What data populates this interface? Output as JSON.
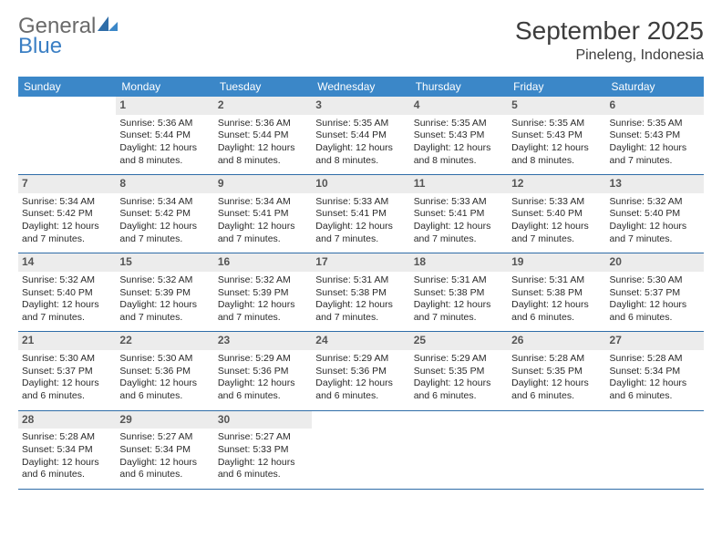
{
  "logo": {
    "line1": "General",
    "line2": "Blue"
  },
  "title": "September 2025",
  "location": "Pineleng, Indonesia",
  "colors": {
    "header_bg": "#3b87c8",
    "header_text": "#ffffff",
    "daynum_bg": "#ececec",
    "daynum_text": "#555555",
    "row_border": "#2f6da8",
    "logo_gray": "#6a6a6a",
    "logo_blue": "#3b7fc4",
    "title_color": "#3d3d3d"
  },
  "weekdays": [
    "Sunday",
    "Monday",
    "Tuesday",
    "Wednesday",
    "Thursday",
    "Friday",
    "Saturday"
  ],
  "weeks": [
    [
      null,
      {
        "n": "1",
        "sr": "5:36 AM",
        "ss": "5:44 PM",
        "dl": "12 hours and 8 minutes."
      },
      {
        "n": "2",
        "sr": "5:36 AM",
        "ss": "5:44 PM",
        "dl": "12 hours and 8 minutes."
      },
      {
        "n": "3",
        "sr": "5:35 AM",
        "ss": "5:44 PM",
        "dl": "12 hours and 8 minutes."
      },
      {
        "n": "4",
        "sr": "5:35 AM",
        "ss": "5:43 PM",
        "dl": "12 hours and 8 minutes."
      },
      {
        "n": "5",
        "sr": "5:35 AM",
        "ss": "5:43 PM",
        "dl": "12 hours and 8 minutes."
      },
      {
        "n": "6",
        "sr": "5:35 AM",
        "ss": "5:43 PM",
        "dl": "12 hours and 7 minutes."
      }
    ],
    [
      {
        "n": "7",
        "sr": "5:34 AM",
        "ss": "5:42 PM",
        "dl": "12 hours and 7 minutes."
      },
      {
        "n": "8",
        "sr": "5:34 AM",
        "ss": "5:42 PM",
        "dl": "12 hours and 7 minutes."
      },
      {
        "n": "9",
        "sr": "5:34 AM",
        "ss": "5:41 PM",
        "dl": "12 hours and 7 minutes."
      },
      {
        "n": "10",
        "sr": "5:33 AM",
        "ss": "5:41 PM",
        "dl": "12 hours and 7 minutes."
      },
      {
        "n": "11",
        "sr": "5:33 AM",
        "ss": "5:41 PM",
        "dl": "12 hours and 7 minutes."
      },
      {
        "n": "12",
        "sr": "5:33 AM",
        "ss": "5:40 PM",
        "dl": "12 hours and 7 minutes."
      },
      {
        "n": "13",
        "sr": "5:32 AM",
        "ss": "5:40 PM",
        "dl": "12 hours and 7 minutes."
      }
    ],
    [
      {
        "n": "14",
        "sr": "5:32 AM",
        "ss": "5:40 PM",
        "dl": "12 hours and 7 minutes."
      },
      {
        "n": "15",
        "sr": "5:32 AM",
        "ss": "5:39 PM",
        "dl": "12 hours and 7 minutes."
      },
      {
        "n": "16",
        "sr": "5:32 AM",
        "ss": "5:39 PM",
        "dl": "12 hours and 7 minutes."
      },
      {
        "n": "17",
        "sr": "5:31 AM",
        "ss": "5:38 PM",
        "dl": "12 hours and 7 minutes."
      },
      {
        "n": "18",
        "sr": "5:31 AM",
        "ss": "5:38 PM",
        "dl": "12 hours and 7 minutes."
      },
      {
        "n": "19",
        "sr": "5:31 AM",
        "ss": "5:38 PM",
        "dl": "12 hours and 6 minutes."
      },
      {
        "n": "20",
        "sr": "5:30 AM",
        "ss": "5:37 PM",
        "dl": "12 hours and 6 minutes."
      }
    ],
    [
      {
        "n": "21",
        "sr": "5:30 AM",
        "ss": "5:37 PM",
        "dl": "12 hours and 6 minutes."
      },
      {
        "n": "22",
        "sr": "5:30 AM",
        "ss": "5:36 PM",
        "dl": "12 hours and 6 minutes."
      },
      {
        "n": "23",
        "sr": "5:29 AM",
        "ss": "5:36 PM",
        "dl": "12 hours and 6 minutes."
      },
      {
        "n": "24",
        "sr": "5:29 AM",
        "ss": "5:36 PM",
        "dl": "12 hours and 6 minutes."
      },
      {
        "n": "25",
        "sr": "5:29 AM",
        "ss": "5:35 PM",
        "dl": "12 hours and 6 minutes."
      },
      {
        "n": "26",
        "sr": "5:28 AM",
        "ss": "5:35 PM",
        "dl": "12 hours and 6 minutes."
      },
      {
        "n": "27",
        "sr": "5:28 AM",
        "ss": "5:34 PM",
        "dl": "12 hours and 6 minutes."
      }
    ],
    [
      {
        "n": "28",
        "sr": "5:28 AM",
        "ss": "5:34 PM",
        "dl": "12 hours and 6 minutes."
      },
      {
        "n": "29",
        "sr": "5:27 AM",
        "ss": "5:34 PM",
        "dl": "12 hours and 6 minutes."
      },
      {
        "n": "30",
        "sr": "5:27 AM",
        "ss": "5:33 PM",
        "dl": "12 hours and 6 minutes."
      },
      null,
      null,
      null,
      null
    ]
  ],
  "labels": {
    "sunrise": "Sunrise:",
    "sunset": "Sunset:",
    "daylight": "Daylight:"
  }
}
